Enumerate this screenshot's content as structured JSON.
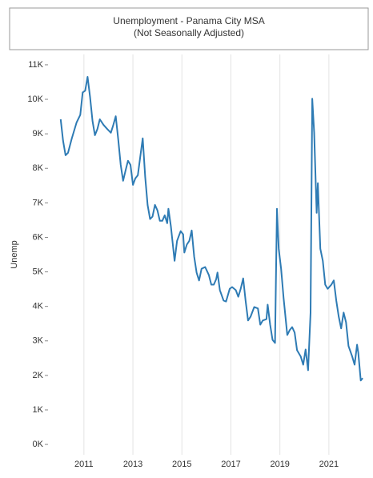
{
  "chart_data": {
    "type": "line",
    "title": "Unemployment - Panama City MSA",
    "subtitle": "(Not Seasonally Adjusted)",
    "y_label": "Unemp",
    "x": [
      2010.05,
      2010.15,
      2010.25,
      2010.35,
      2010.5,
      2010.7,
      2010.85,
      2010.95,
      2011.05,
      2011.15,
      2011.25,
      2011.35,
      2011.45,
      2011.55,
      2011.65,
      2011.8,
      2011.95,
      2012.1,
      2012.2,
      2012.3,
      2012.4,
      2012.5,
      2012.6,
      2012.7,
      2012.8,
      2012.9,
      2013.0,
      2013.1,
      2013.2,
      2013.3,
      2013.4,
      2013.5,
      2013.6,
      2013.7,
      2013.8,
      2013.9,
      2014.0,
      2014.1,
      2014.2,
      2014.3,
      2014.4,
      2014.45,
      2014.55,
      2014.7,
      2014.8,
      2014.95,
      2015.05,
      2015.1,
      2015.2,
      2015.3,
      2015.4,
      2015.5,
      2015.6,
      2015.7,
      2015.8,
      2015.95,
      2016.1,
      2016.2,
      2016.3,
      2016.4,
      2016.45,
      2016.55,
      2016.7,
      2016.8,
      2016.95,
      2017.05,
      2017.2,
      2017.3,
      2017.4,
      2017.5,
      2017.6,
      2017.7,
      2017.8,
      2017.95,
      2018.1,
      2018.2,
      2018.3,
      2018.45,
      2018.5,
      2018.6,
      2018.7,
      2018.8,
      2018.88,
      2018.95,
      2019.05,
      2019.15,
      2019.3,
      2019.4,
      2019.5,
      2019.6,
      2019.7,
      2019.85,
      2019.95,
      2020.05,
      2020.15,
      2020.25,
      2020.32,
      2020.4,
      2020.5,
      2020.55,
      2020.65,
      2020.75,
      2020.85,
      2020.95,
      2021.1,
      2021.2,
      2021.3,
      2021.4,
      2021.5,
      2021.6,
      2021.7,
      2021.8,
      2021.95,
      2022.05,
      2022.15,
      2022.2,
      2022.3,
      2022.38
    ],
    "series": [
      {
        "name": "Unemp",
        "color": "#2e7bb4",
        "values": [
          9420,
          8800,
          8380,
          8450,
          8850,
          9330,
          9550,
          10200,
          10250,
          10650,
          10070,
          9370,
          8960,
          9140,
          9420,
          9260,
          9140,
          9030,
          9260,
          9510,
          8840,
          8100,
          7640,
          7940,
          8220,
          8100,
          7520,
          7710,
          7800,
          8330,
          8870,
          7750,
          6940,
          6530,
          6600,
          6940,
          6780,
          6480,
          6480,
          6640,
          6410,
          6830,
          6320,
          5320,
          5900,
          6180,
          6090,
          5560,
          5790,
          5900,
          6200,
          5440,
          4980,
          4750,
          5090,
          5140,
          4910,
          4630,
          4630,
          4790,
          4980,
          4470,
          4170,
          4140,
          4510,
          4560,
          4470,
          4280,
          4510,
          4810,
          4170,
          3590,
          3700,
          3980,
          3940,
          3470,
          3590,
          3630,
          4050,
          3470,
          3030,
          2940,
          6830,
          5670,
          5090,
          4240,
          3170,
          3310,
          3400,
          3240,
          2730,
          2550,
          2310,
          2750,
          2150,
          3820,
          10020,
          9030,
          6710,
          7570,
          5670,
          5320,
          4630,
          4510,
          4630,
          4750,
          4170,
          3700,
          3360,
          3820,
          3540,
          2850,
          2550,
          2310,
          2890,
          2660,
          1850,
          1920
        ]
      }
    ],
    "xlim": [
      2009.6,
      2022.8
    ],
    "xticks": [
      2011,
      2013,
      2015,
      2017,
      2019,
      2021
    ],
    "ylim": [
      -300,
      11300
    ],
    "yticks": [
      {
        "value": 0,
        "label": "0K"
      },
      {
        "value": 1000,
        "label": "1K"
      },
      {
        "value": 2000,
        "label": "2K"
      },
      {
        "value": 3000,
        "label": "3K"
      },
      {
        "value": 4000,
        "label": "4K"
      },
      {
        "value": 5000,
        "label": "5K"
      },
      {
        "value": 6000,
        "label": "6K"
      },
      {
        "value": 7000,
        "label": "7K"
      },
      {
        "value": 8000,
        "label": "8K"
      },
      {
        "value": 9000,
        "label": "9K"
      },
      {
        "value": 10000,
        "label": "10K"
      },
      {
        "value": 11000,
        "label": "11K"
      }
    ],
    "grid": "x"
  }
}
